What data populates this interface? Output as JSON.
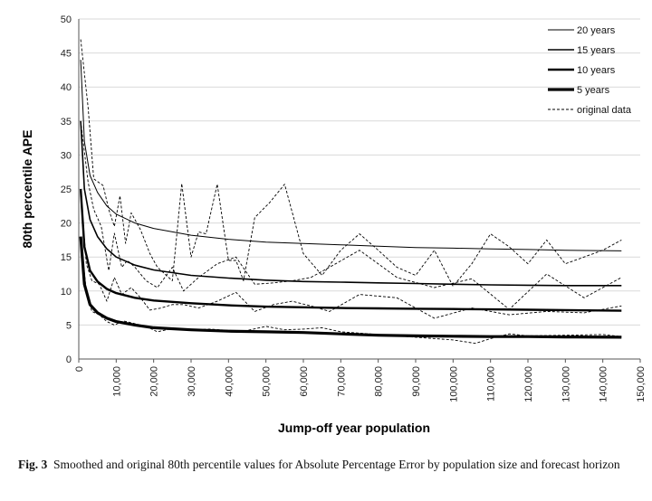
{
  "chart_data": {
    "type": "line",
    "xlabel": "Jump-off year population",
    "ylabel": "80th percentile APE",
    "xlim": [
      0,
      150000
    ],
    "ylim": [
      0,
      50
    ],
    "xticks": [
      "0",
      "10,000",
      "20,000",
      "30,000",
      "40,000",
      "50,000",
      "60,000",
      "70,000",
      "80,000",
      "90,000",
      "100,000",
      "110,000",
      "120,000",
      "130,000",
      "140,000",
      "150,000"
    ],
    "yticks": [
      "0",
      "5",
      "10",
      "15",
      "20",
      "25",
      "30",
      "35",
      "40",
      "45",
      "50"
    ],
    "legend_position": "top-right",
    "series": [
      {
        "name": "20 years",
        "style": "smoothed",
        "x": [
          500,
          1500,
          3000,
          5000,
          7500,
          10000,
          15000,
          20000,
          30000,
          40000,
          50000,
          60000,
          70000,
          80000,
          90000,
          100000,
          110000,
          120000,
          130000,
          145000
        ],
        "y": [
          44,
          32,
          27,
          24.5,
          22.5,
          21.3,
          20,
          19.2,
          18.2,
          17.6,
          17.2,
          17,
          16.8,
          16.6,
          16.4,
          16.3,
          16.2,
          16.1,
          16,
          15.9
        ]
      },
      {
        "name": "15 years",
        "style": "smoothed",
        "x": [
          500,
          1500,
          3000,
          5000,
          7500,
          10000,
          15000,
          20000,
          30000,
          40000,
          50000,
          60000,
          70000,
          80000,
          90000,
          100000,
          110000,
          120000,
          130000,
          145000
        ],
        "y": [
          35,
          25,
          20.5,
          18,
          16.2,
          15,
          13.8,
          13.1,
          12.3,
          11.9,
          11.6,
          11.4,
          11.3,
          11.2,
          11.1,
          11,
          10.9,
          10.85,
          10.8,
          10.8
        ]
      },
      {
        "name": "10 years",
        "style": "smoothed",
        "x": [
          500,
          1500,
          3000,
          5000,
          7500,
          10000,
          15000,
          20000,
          30000,
          40000,
          50000,
          60000,
          70000,
          80000,
          90000,
          100000,
          110000,
          120000,
          130000,
          145000
        ],
        "y": [
          25,
          16.5,
          13,
          11.4,
          10.3,
          9.7,
          9,
          8.6,
          8.2,
          7.9,
          7.7,
          7.6,
          7.5,
          7.45,
          7.4,
          7.35,
          7.3,
          7.25,
          7.2,
          7.1
        ]
      },
      {
        "name": "5 years",
        "style": "smoothed",
        "x": [
          500,
          1500,
          3000,
          5000,
          7500,
          10000,
          15000,
          20000,
          30000,
          40000,
          50000,
          60000,
          70000,
          80000,
          90000,
          100000,
          110000,
          120000,
          130000,
          145000
        ],
        "y": [
          18,
          11,
          8,
          6.8,
          6,
          5.5,
          5,
          4.6,
          4.3,
          4.1,
          4,
          3.9,
          3.7,
          3.5,
          3.4,
          3.35,
          3.3,
          3.3,
          3.25,
          3.2
        ]
      },
      {
        "name": "original data",
        "style": "dashed",
        "x": [
          500,
          2500,
          4000,
          6500,
          8000,
          9500,
          11000,
          12500,
          14000,
          16500,
          19000,
          21000,
          23000,
          25000,
          27500,
          30000,
          32000,
          34000,
          37000,
          40000,
          42000,
          44000,
          47000,
          51000,
          55000,
          60000,
          65000,
          70000,
          75000,
          80000,
          85000,
          90000,
          95000,
          100000,
          105000,
          110000,
          115000,
          120000,
          125000,
          130000,
          135000,
          140000,
          145000
        ],
        "y": [
          47,
          37,
          26.5,
          25.5,
          22,
          19.5,
          24,
          17,
          21.5,
          19,
          15.5,
          13.5,
          12.5,
          11.5,
          25.8,
          15,
          18.7,
          18.4,
          25.7,
          14.5,
          14.5,
          11.5,
          20.8,
          23,
          25.7,
          15.5,
          12.3,
          16,
          18.4,
          16,
          13.5,
          12.3,
          16,
          10.7,
          14,
          18.4,
          16.5,
          14,
          17.5,
          14,
          15,
          16,
          17.5
        ]
      },
      {
        "name": "original data",
        "style": "dashed",
        "x": [
          500,
          2500,
          4000,
          6000,
          8000,
          9500,
          11500,
          13000,
          15000,
          18000,
          21000,
          25000,
          28000,
          32000,
          37000,
          42000,
          47000,
          52000,
          57000,
          62000,
          67000,
          75000,
          85000,
          95000,
          105000,
          115000,
          125000,
          135000,
          145000
        ],
        "y": [
          35,
          26,
          22,
          19.5,
          13,
          18.5,
          13.5,
          14.5,
          13.5,
          11.5,
          10.5,
          13.5,
          10,
          12,
          14,
          15,
          11,
          11.2,
          11.5,
          12,
          13.5,
          16,
          12,
          10.5,
          11.8,
          7.3,
          12.5,
          9,
          12
        ]
      },
      {
        "name": "original data",
        "style": "dashed",
        "x": [
          500,
          2000,
          3500,
          5500,
          7500,
          9500,
          11500,
          14000,
          16500,
          19000,
          22000,
          25000,
          28000,
          32000,
          37000,
          42000,
          47000,
          52000,
          57000,
          62000,
          67000,
          75000,
          85000,
          95000,
          105000,
          115000,
          125000,
          135000,
          145000
        ],
        "y": [
          25,
          14,
          11.5,
          11,
          8.5,
          12,
          9.5,
          10.5,
          9,
          7.2,
          7.5,
          8,
          8,
          7.5,
          8.5,
          9.8,
          7,
          8,
          8.5,
          7.8,
          7,
          9.5,
          9,
          6,
          7.5,
          6.5,
          7,
          6.8,
          7.8
        ]
      },
      {
        "name": "original data",
        "style": "dashed",
        "x": [
          500,
          2000,
          3500,
          5500,
          7500,
          9500,
          12000,
          15000,
          18000,
          21000,
          25000,
          30000,
          35000,
          40000,
          45000,
          50000,
          55000,
          60000,
          65000,
          70000,
          80000,
          90000,
          100000,
          106000,
          110000,
          115000,
          120000,
          130000,
          140000,
          145000
        ],
        "y": [
          18,
          10,
          7,
          6.5,
          5.5,
          5,
          5.6,
          5.2,
          4.8,
          4,
          4.5,
          4.3,
          4.4,
          4.2,
          4.2,
          4.8,
          4.3,
          4.4,
          4.6,
          4,
          3.6,
          3.2,
          2.8,
          2.3,
          3,
          3.7,
          3.4,
          3.5,
          3.6,
          3.3
        ]
      }
    ]
  },
  "caption": {
    "label": "Fig. 3",
    "text": "Smoothed and original 80th percentile values for Absolute Percentage Error by population size and forecast horizon"
  }
}
